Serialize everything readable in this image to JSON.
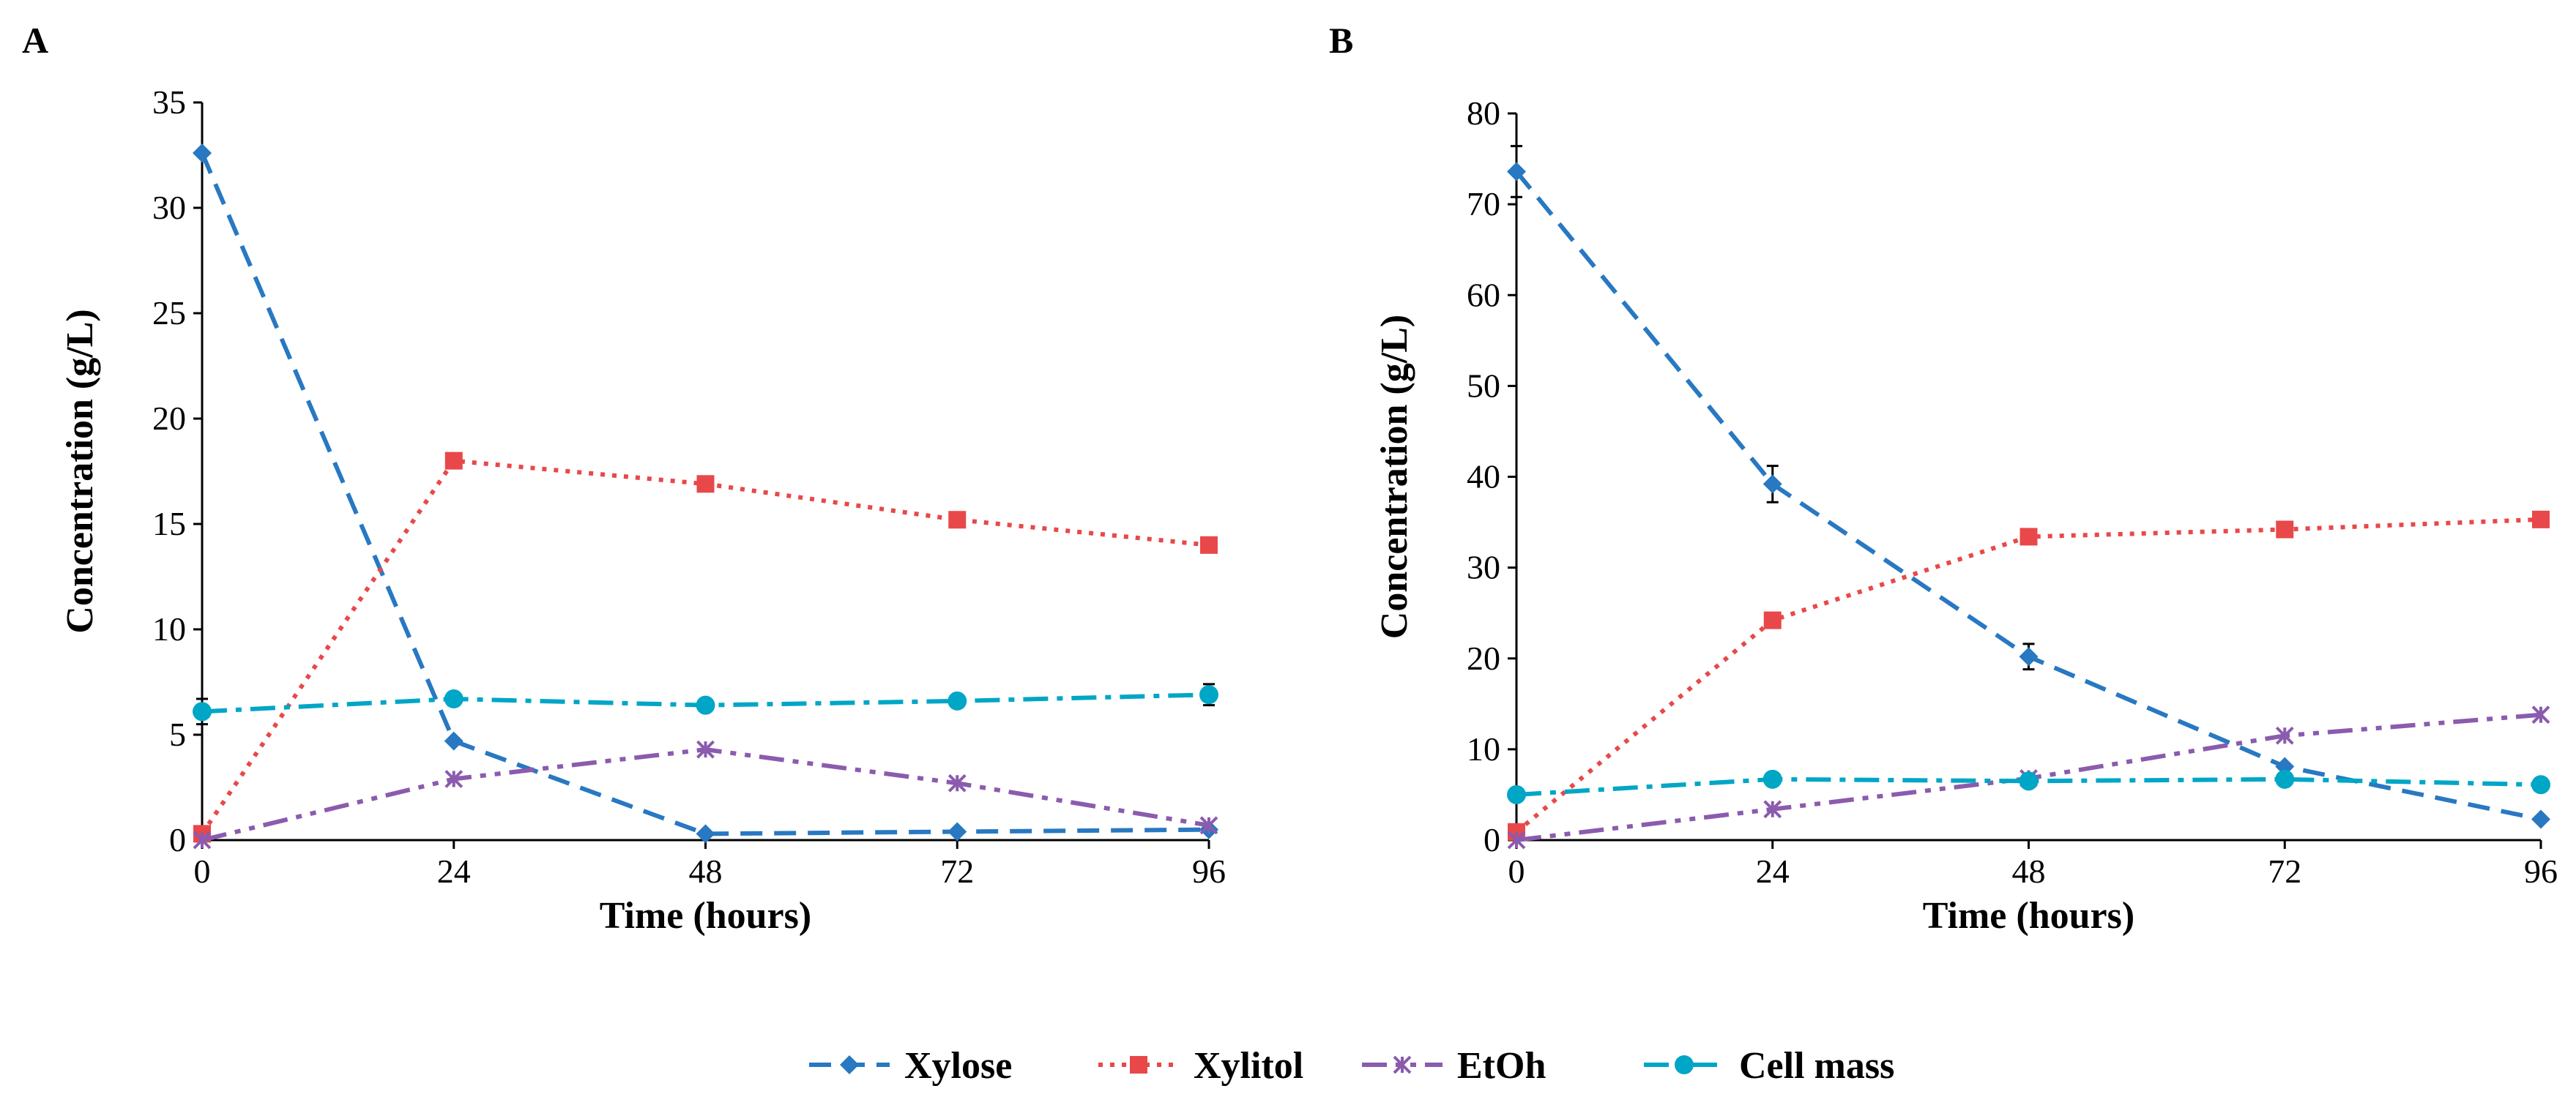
{
  "chart_data": [
    {
      "type": "line",
      "panel_label": "A",
      "xlabel": "Time (hours)",
      "ylabel": "Concentration (g/L)",
      "x": [
        0,
        24,
        48,
        72,
        96
      ],
      "x_ticks": [
        "0",
        "24",
        "48",
        "72",
        "96"
      ],
      "ylim": [
        0,
        35
      ],
      "y_ticks": [
        "0",
        "5",
        "10",
        "15",
        "20",
        "25",
        "30",
        "35"
      ],
      "grid": false,
      "series": [
        {
          "name": "Xylose",
          "values": [
            32.6,
            4.7,
            0.3,
            0.4,
            0.5
          ],
          "errors": [
            0,
            0,
            0,
            0,
            0
          ]
        },
        {
          "name": "Xylitol",
          "values": [
            0.3,
            18.0,
            16.9,
            15.2,
            14.0
          ],
          "errors": [
            0,
            0,
            0,
            0,
            0
          ]
        },
        {
          "name": "EtOh",
          "values": [
            0.0,
            2.9,
            4.3,
            2.7,
            0.7
          ],
          "errors": [
            0,
            0,
            0,
            0,
            0
          ]
        },
        {
          "name": "Cell mass",
          "values": [
            6.1,
            6.7,
            6.4,
            6.6,
            6.9
          ],
          "errors": [
            0.6,
            0.3,
            0,
            0,
            0.5
          ]
        }
      ]
    },
    {
      "type": "line",
      "panel_label": "B",
      "xlabel": "Time (hours)",
      "ylabel": "Concentration (g/L)",
      "x": [
        0,
        24,
        48,
        72,
        96
      ],
      "x_ticks": [
        "0",
        "24",
        "48",
        "72",
        "96"
      ],
      "ylim": [
        0,
        80
      ],
      "y_ticks": [
        "0",
        "10",
        "20",
        "30",
        "40",
        "50",
        "60",
        "70",
        "80"
      ],
      "grid": false,
      "series": [
        {
          "name": "Xylose",
          "values": [
            73.6,
            39.2,
            20.2,
            8.1,
            2.3
          ],
          "errors": [
            2.8,
            2.0,
            1.4,
            0,
            0
          ]
        },
        {
          "name": "Xylitol",
          "values": [
            0.9,
            24.2,
            33.4,
            34.2,
            35.3
          ],
          "errors": [
            0,
            0,
            0,
            0,
            0.8
          ]
        },
        {
          "name": "EtOh",
          "values": [
            0.0,
            3.4,
            6.8,
            11.5,
            13.8
          ],
          "errors": [
            0,
            0,
            0,
            0,
            0
          ]
        },
        {
          "name": "Cell mass",
          "values": [
            5.0,
            6.7,
            6.5,
            6.7,
            6.1
          ],
          "errors": [
            0,
            0,
            0,
            0,
            0
          ]
        }
      ]
    }
  ],
  "legend": {
    "placement": "bottom-center",
    "items": [
      {
        "name": "Xylose",
        "color": "#2878C2",
        "marker": "diamond",
        "dash": "dashed"
      },
      {
        "name": "Xylitol",
        "color": "#E8484A",
        "marker": "square",
        "dash": "dotted"
      },
      {
        "name": "EtOh",
        "color": "#8B5BAE",
        "marker": "asterisk",
        "dash": "dash-dot-dot"
      },
      {
        "name": "Cell mass",
        "color": "#00A6C6",
        "marker": "circle",
        "dash": "dash-dot"
      }
    ]
  }
}
